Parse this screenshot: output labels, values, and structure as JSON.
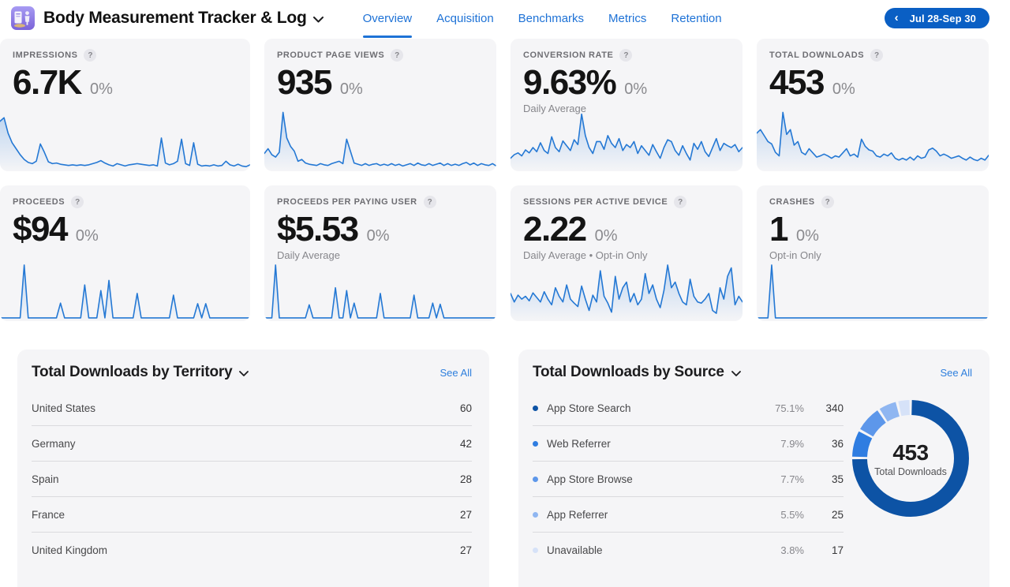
{
  "ui": {
    "help_glyph": "?"
  },
  "colors": {
    "accent_blue": "#1e72d6",
    "pill_blue": "#0a5fc4",
    "see_all_blue": "#2e7fdd",
    "card_bg": "#f5f5f7",
    "spark": "#2478d4"
  },
  "header": {
    "app_title": "Body Measurement Tracker & Log",
    "back_glyph": "‹",
    "date_range": "Jul 28-Sep 30",
    "tabs": [
      {
        "label": "Overview",
        "active": true
      },
      {
        "label": "Acquisition",
        "active": false
      },
      {
        "label": "Benchmarks",
        "active": false
      },
      {
        "label": "Metrics",
        "active": false
      },
      {
        "label": "Retention",
        "active": false
      }
    ]
  },
  "metrics": [
    {
      "label": "IMPRESSIONS",
      "value": "6.7K",
      "delta": "0%",
      "sublabel": "",
      "spark": [
        0.8,
        0.86,
        0.6,
        0.44,
        0.34,
        0.24,
        0.16,
        0.11,
        0.09,
        0.13,
        0.42,
        0.28,
        0.12,
        0.09,
        0.1,
        0.08,
        0.07,
        0.06,
        0.07,
        0.06,
        0.07,
        0.06,
        0.07,
        0.09,
        0.11,
        0.14,
        0.1,
        0.07,
        0.05,
        0.09,
        0.07,
        0.05,
        0.07,
        0.08,
        0.09,
        0.08,
        0.07,
        0.06,
        0.07,
        0.05,
        0.52,
        0.1,
        0.07,
        0.09,
        0.13,
        0.5,
        0.09,
        0.06,
        0.44,
        0.08,
        0.05,
        0.06,
        0.05,
        0.07,
        0.05,
        0.06,
        0.13,
        0.07,
        0.05,
        0.08,
        0.05,
        0.04,
        0.07
      ]
    },
    {
      "label": "PRODUCT PAGE VIEWS",
      "value": "935",
      "delta": "0%",
      "sublabel": "",
      "spark": [
        0.26,
        0.34,
        0.24,
        0.2,
        0.28,
        0.95,
        0.52,
        0.38,
        0.3,
        0.13,
        0.16,
        0.1,
        0.08,
        0.07,
        0.06,
        0.09,
        0.07,
        0.06,
        0.09,
        0.11,
        0.13,
        0.09,
        0.5,
        0.3,
        0.1,
        0.08,
        0.06,
        0.09,
        0.06,
        0.08,
        0.09,
        0.06,
        0.08,
        0.06,
        0.09,
        0.06,
        0.08,
        0.05,
        0.07,
        0.09,
        0.06,
        0.1,
        0.07,
        0.06,
        0.09,
        0.06,
        0.08,
        0.1,
        0.06,
        0.09,
        0.06,
        0.08,
        0.06,
        0.09,
        0.11,
        0.07,
        0.1,
        0.06,
        0.09,
        0.07,
        0.06,
        0.09,
        0.05
      ]
    },
    {
      "label": "CONVERSION RATE",
      "value": "9.63%",
      "delta": "0%",
      "sublabel": "Daily Average",
      "spark": [
        0.18,
        0.24,
        0.27,
        0.22,
        0.32,
        0.27,
        0.36,
        0.29,
        0.44,
        0.31,
        0.26,
        0.54,
        0.36,
        0.29,
        0.47,
        0.39,
        0.31,
        0.49,
        0.41,
        0.92,
        0.56,
        0.36,
        0.26,
        0.46,
        0.46,
        0.33,
        0.56,
        0.43,
        0.36,
        0.51,
        0.31,
        0.41,
        0.36,
        0.46,
        0.26,
        0.39,
        0.31,
        0.23,
        0.41,
        0.29,
        0.18,
        0.36,
        0.49,
        0.46,
        0.31,
        0.23,
        0.39,
        0.26,
        0.15,
        0.43,
        0.33,
        0.46,
        0.29,
        0.21,
        0.36,
        0.51,
        0.31,
        0.43,
        0.39,
        0.36,
        0.41,
        0.29,
        0.36
      ]
    },
    {
      "label": "TOTAL DOWNLOADS",
      "value": "453",
      "delta": "0%",
      "sublabel": "",
      "spark": [
        0.6,
        0.66,
        0.56,
        0.46,
        0.42,
        0.28,
        0.22,
        0.95,
        0.58,
        0.66,
        0.4,
        0.46,
        0.28,
        0.24,
        0.34,
        0.27,
        0.2,
        0.22,
        0.25,
        0.22,
        0.18,
        0.22,
        0.2,
        0.27,
        0.34,
        0.22,
        0.25,
        0.2,
        0.5,
        0.38,
        0.32,
        0.3,
        0.22,
        0.2,
        0.25,
        0.22,
        0.27,
        0.18,
        0.15,
        0.18,
        0.15,
        0.2,
        0.15,
        0.22,
        0.18,
        0.2,
        0.32,
        0.35,
        0.3,
        0.22,
        0.25,
        0.22,
        0.18,
        0.2,
        0.22,
        0.18,
        0.15,
        0.2,
        0.16,
        0.14,
        0.18,
        0.15,
        0.23
      ]
    },
    {
      "label": "PROCEEDS",
      "value": "$94",
      "delta": "0%",
      "sublabel": "",
      "spark": [
        0.02,
        0.02,
        0.02,
        0.02,
        0.02,
        0.02,
        0.95,
        0.02,
        0.02,
        0.02,
        0.02,
        0.02,
        0.02,
        0.02,
        0.02,
        0.28,
        0.02,
        0.02,
        0.02,
        0.02,
        0.02,
        0.6,
        0.02,
        0.02,
        0.02,
        0.5,
        0.02,
        0.68,
        0.02,
        0.02,
        0.02,
        0.02,
        0.02,
        0.02,
        0.45,
        0.02,
        0.02,
        0.02,
        0.02,
        0.02,
        0.02,
        0.02,
        0.02,
        0.42,
        0.02,
        0.02,
        0.02,
        0.02,
        0.02,
        0.27,
        0.02,
        0.27,
        0.02,
        0.02,
        0.02,
        0.02,
        0.02,
        0.02,
        0.02,
        0.02,
        0.02,
        0.02,
        0.02
      ]
    },
    {
      "label": "PROCEEDS PER PAYING USER",
      "value": "$5.53",
      "delta": "0%",
      "sublabel": "Daily Average",
      "spark": [
        0.02,
        0.02,
        0.02,
        0.95,
        0.02,
        0.02,
        0.02,
        0.02,
        0.02,
        0.02,
        0.02,
        0.02,
        0.25,
        0.02,
        0.02,
        0.02,
        0.02,
        0.02,
        0.02,
        0.55,
        0.02,
        0.02,
        0.5,
        0.02,
        0.28,
        0.02,
        0.02,
        0.02,
        0.02,
        0.02,
        0.02,
        0.45,
        0.02,
        0.02,
        0.02,
        0.02,
        0.02,
        0.02,
        0.02,
        0.02,
        0.42,
        0.02,
        0.02,
        0.02,
        0.02,
        0.28,
        0.02,
        0.26,
        0.02,
        0.02,
        0.02,
        0.02,
        0.02,
        0.02,
        0.02,
        0.02,
        0.02,
        0.02,
        0.02,
        0.02,
        0.02,
        0.02,
        0.02
      ]
    },
    {
      "label": "SESSIONS PER ACTIVE DEVICE",
      "value": "2.22",
      "delta": "0%",
      "sublabel": "Daily Average • Opt-in Only",
      "spark": [
        0.45,
        0.3,
        0.42,
        0.35,
        0.4,
        0.32,
        0.46,
        0.38,
        0.3,
        0.48,
        0.35,
        0.25,
        0.55,
        0.4,
        0.3,
        0.6,
        0.35,
        0.28,
        0.22,
        0.58,
        0.35,
        0.15,
        0.42,
        0.3,
        0.85,
        0.4,
        0.28,
        0.12,
        0.75,
        0.35,
        0.55,
        0.65,
        0.3,
        0.45,
        0.25,
        0.35,
        0.8,
        0.45,
        0.6,
        0.35,
        0.2,
        0.5,
        0.95,
        0.55,
        0.65,
        0.45,
        0.3,
        0.25,
        0.7,
        0.4,
        0.3,
        0.28,
        0.35,
        0.45,
        0.15,
        0.1,
        0.55,
        0.35,
        0.75,
        0.9,
        0.25,
        0.4,
        0.3
      ]
    },
    {
      "label": "CRASHES",
      "value": "1",
      "delta": "0%",
      "sublabel": "Opt-in Only",
      "spark": [
        0.02,
        0.02,
        0.02,
        0.02,
        0.95,
        0.02,
        0.02,
        0.02,
        0.02,
        0.02,
        0.02,
        0.02,
        0.02,
        0.02,
        0.02,
        0.02,
        0.02,
        0.02,
        0.02,
        0.02,
        0.02,
        0.02,
        0.02,
        0.02,
        0.02,
        0.02,
        0.02,
        0.02,
        0.02,
        0.02,
        0.02,
        0.02,
        0.02,
        0.02,
        0.02,
        0.02,
        0.02,
        0.02,
        0.02,
        0.02,
        0.02,
        0.02,
        0.02,
        0.02,
        0.02,
        0.02,
        0.02,
        0.02,
        0.02,
        0.02,
        0.02,
        0.02,
        0.02,
        0.02,
        0.02,
        0.02,
        0.02,
        0.02,
        0.02,
        0.02,
        0.02,
        0.02,
        0.02
      ]
    }
  ],
  "territory_panel": {
    "title": "Total Downloads by Territory",
    "see_all": "See All",
    "rows": [
      {
        "label": "United States",
        "value": "60"
      },
      {
        "label": "Germany",
        "value": "42"
      },
      {
        "label": "Spain",
        "value": "28"
      },
      {
        "label": "France",
        "value": "27"
      },
      {
        "label": "United Kingdom",
        "value": "27"
      }
    ]
  },
  "source_panel": {
    "title": "Total Downloads by Source",
    "see_all": "See All",
    "rows": [
      {
        "label": "App Store Search",
        "percent": "75.1%",
        "value": "340",
        "color": "#0d53a5"
      },
      {
        "label": "Web Referrer",
        "percent": "7.9%",
        "value": "36",
        "color": "#2f7de1"
      },
      {
        "label": "App Store Browse",
        "percent": "7.7%",
        "value": "35",
        "color": "#5d97ea"
      },
      {
        "label": "App Referrer",
        "percent": "5.5%",
        "value": "25",
        "color": "#8fb6f1"
      },
      {
        "label": "Unavailable",
        "percent": "3.8%",
        "value": "17",
        "color": "#d6e2f8"
      }
    ],
    "donut": {
      "type": "pie",
      "center_value": "453",
      "center_label": "Total Downloads",
      "values": [
        75.1,
        7.9,
        7.7,
        5.5,
        3.8
      ],
      "colors": [
        "#0d53a5",
        "#2f7de1",
        "#5d97ea",
        "#8fb6f1",
        "#d6e2f8"
      ]
    }
  }
}
